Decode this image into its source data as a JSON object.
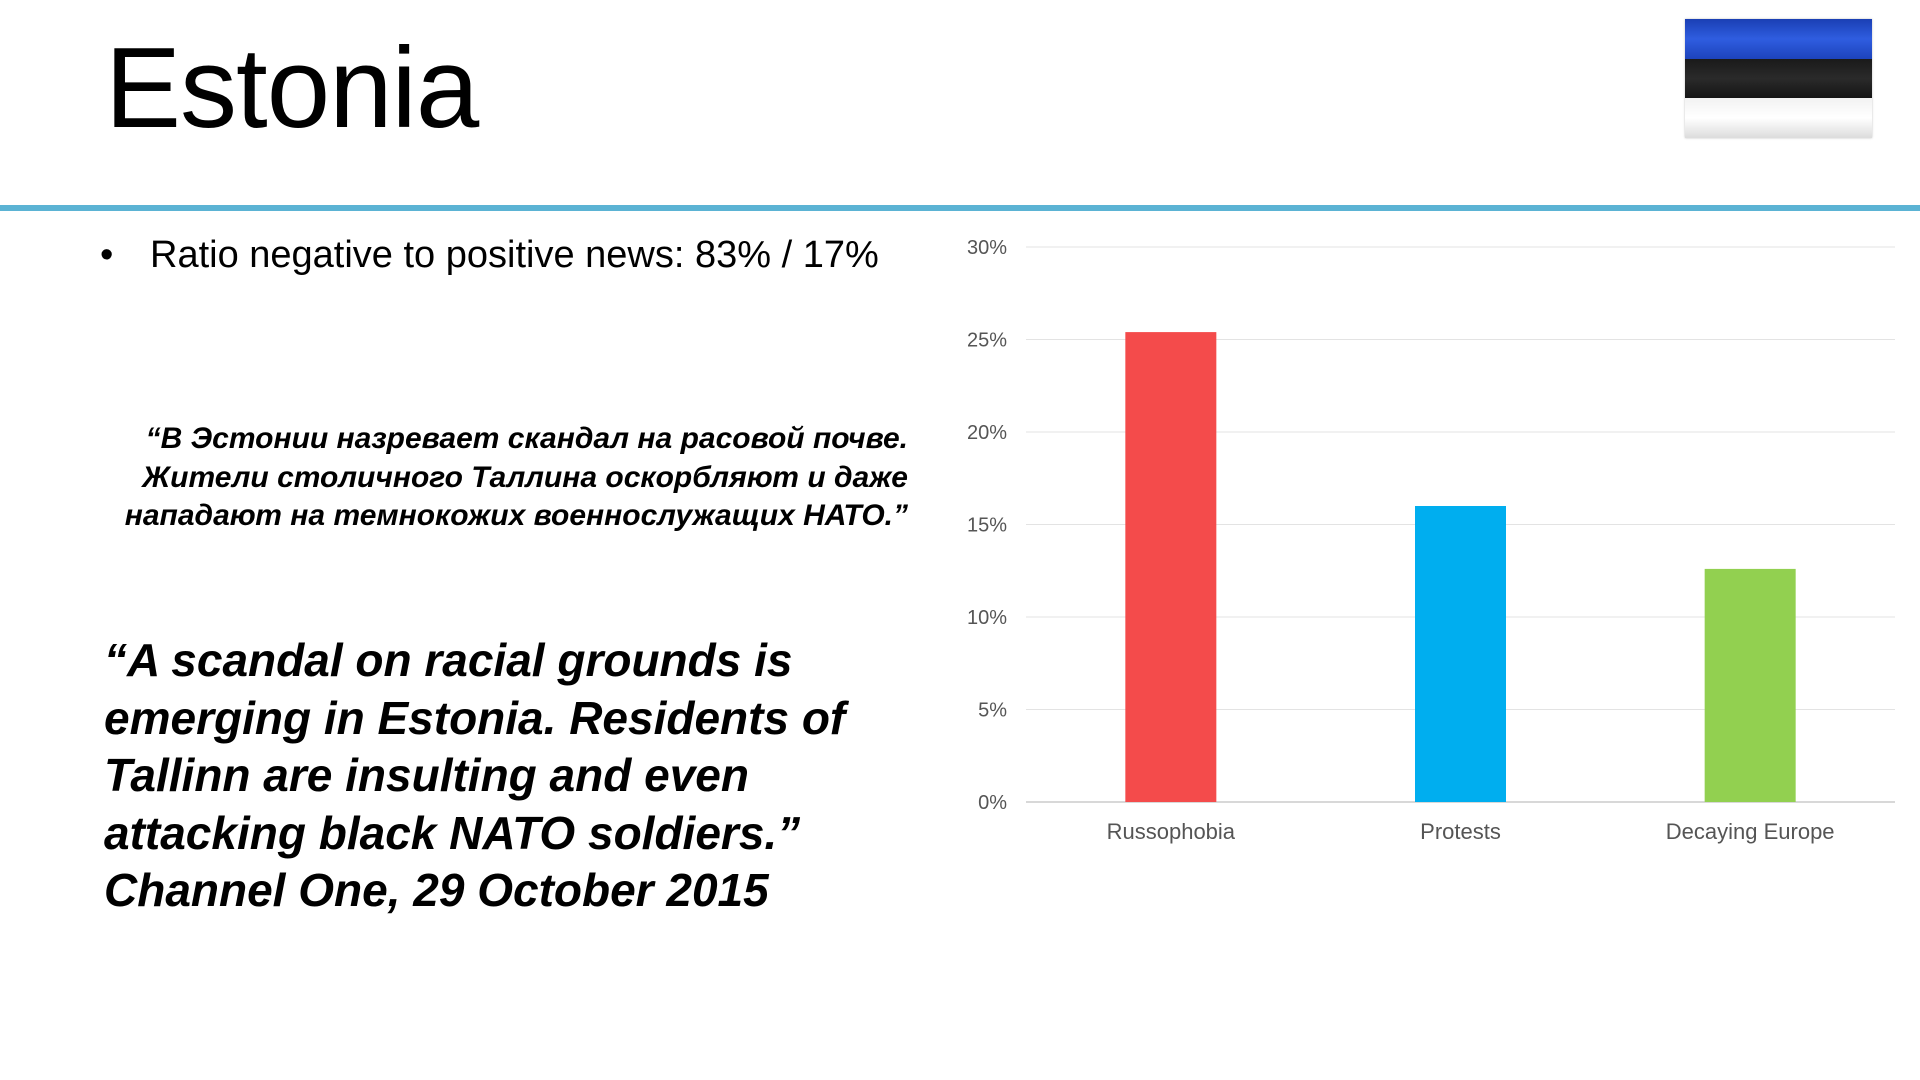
{
  "slide": {
    "title": "Estonia",
    "bullet": "•",
    "ratio_text": "Ratio negative to positive news: 83% / 17%",
    "russian_quote": "“В Эстонии назревает скандал на расовой почве. Жители столичного Таллина оскорбляют и даже нападают на темнокожих военнослужащих НАТО.”",
    "english_quote": {
      "line1": "“A scandal on racial grounds is",
      "line2": "emerging in Estonia. Residents of",
      "line3": "Tallinn are insulting and even",
      "line4": "attacking black NATO soldiers.”",
      "line5": "Channel One, 29 October 2015"
    }
  },
  "flag_colors": [
    "#2f5de0",
    "#1a1a1a",
    "#ffffff"
  ],
  "chart_data": {
    "type": "bar",
    "categories": [
      "Russophobia",
      "Protests",
      "Decaying Europe"
    ],
    "values": [
      25.4,
      16.0,
      12.6
    ],
    "colors": [
      "#f44b4b",
      "#00aeef",
      "#92d050"
    ],
    "ylim": [
      0,
      30
    ],
    "yticks": [
      0,
      5,
      10,
      15,
      20,
      25,
      30
    ],
    "ytick_labels": [
      "0%",
      "5%",
      "10%",
      "15%",
      "20%",
      "25%",
      "30%"
    ],
    "grid": true,
    "title": "",
    "xlabel": "",
    "ylabel": ""
  }
}
